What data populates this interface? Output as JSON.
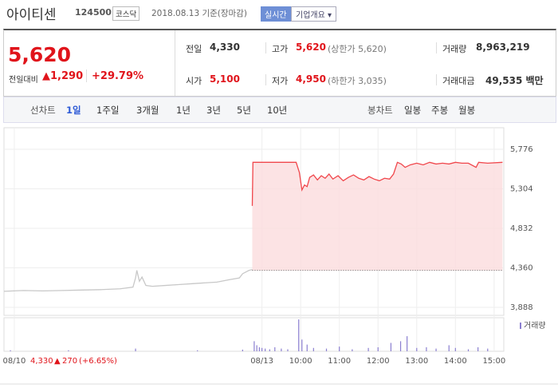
{
  "header": {
    "title": "아이티센",
    "code": "124500",
    "market": "코스닥",
    "date": "2018.08.13 기준(장마감)",
    "realtime": "실시간",
    "company": "기업개요"
  },
  "quote": {
    "price": "5,620",
    "change_label": "전일대비",
    "change": "1,290",
    "change_pct": "+29.79%",
    "cells": [
      {
        "label": "전일",
        "value": "4,330"
      },
      {
        "label": "고가",
        "value": "5,620",
        "note": "(상한가 5,620)"
      },
      {
        "label": "거래량",
        "value": "8,963,219"
      },
      {
        "label": "시가",
        "value": "5,100"
      },
      {
        "label": "저가",
        "value": "4,950",
        "note": "(하한가 3,035)"
      },
      {
        "label": "거래대금",
        "value": "49,535 백만"
      }
    ]
  },
  "tabs": {
    "line_label": "선차트",
    "line": [
      "1일",
      "1주일",
      "3개월",
      "1년",
      "3년",
      "5년",
      "10년"
    ],
    "candle_label": "봉차트",
    "candle": [
      "일봉",
      "주봉",
      "월봉"
    ]
  },
  "chart_data": {
    "type": "line",
    "xlim": [
      -400,
      375
    ],
    "ylim": [
      3793,
      6033
    ],
    "yticks": [
      {
        "value": 5776,
        "label": "5,776"
      },
      {
        "value": 5304,
        "label": "5,304"
      },
      {
        "value": 4832,
        "label": "4,832"
      },
      {
        "value": 4360,
        "label": "4,360"
      },
      {
        "value": 3888,
        "label": "3,888"
      }
    ],
    "xticks": [
      {
        "value": -384,
        "label": "08/10"
      },
      {
        "value": 0,
        "label": "08/13"
      },
      {
        "value": 60,
        "label": "10:00"
      },
      {
        "value": 120,
        "label": "11:00"
      },
      {
        "value": 180,
        "label": "12:00"
      },
      {
        "value": 240,
        "label": "13:00"
      },
      {
        "value": 300,
        "label": "14:00"
      },
      {
        "value": 360,
        "label": "15:00"
      }
    ],
    "grid": true,
    "reference_line": 4330,
    "series": [
      {
        "color": "#c8c8c8",
        "x": [
          -400,
          -370,
          -340,
          -310,
          -280,
          -250,
          -220,
          -200,
          -196,
          -194,
          -190,
          -186,
          -180,
          -170,
          -150,
          -130,
          -110,
          -90,
          -70,
          -50,
          -35,
          -30,
          -20,
          -15
        ],
        "values": [
          4080,
          4090,
          4085,
          4090,
          4095,
          4100,
          4110,
          4130,
          4240,
          4330,
          4200,
          4250,
          4150,
          4140,
          4150,
          4160,
          4170,
          4180,
          4190,
          4220,
          4240,
          4290,
          4330,
          4340
        ]
      },
      {
        "color": "#f0464b",
        "fill": "#fbdcdd",
        "x": [
          -15,
          -14,
          53,
          58,
          62,
          66,
          70,
          74,
          80,
          86,
          92,
          98,
          104,
          110,
          118,
          126,
          134,
          142,
          150,
          158,
          166,
          174,
          182,
          190,
          198,
          204,
          210,
          216,
          222,
          230,
          240,
          250,
          260,
          270,
          280,
          290,
          300,
          310,
          320,
          332,
          336,
          350,
          373
        ],
        "values": [
          5100,
          5620,
          5620,
          5500,
          5290,
          5350,
          5330,
          5440,
          5470,
          5410,
          5460,
          5430,
          5480,
          5420,
          5460,
          5400,
          5440,
          5470,
          5430,
          5410,
          5450,
          5420,
          5400,
          5430,
          5420,
          5480,
          5620,
          5600,
          5560,
          5590,
          5610,
          5590,
          5620,
          5600,
          5610,
          5600,
          5620,
          5610,
          5610,
          5560,
          5620,
          5610,
          5620
        ]
      }
    ],
    "volume": {
      "name": "거래량",
      "color": "#8b7fd0",
      "ylim": [
        0,
        100
      ],
      "x": [
        -390,
        -300,
        -196,
        -100,
        -30,
        -12,
        -8,
        -4,
        0,
        5,
        12,
        20,
        30,
        40,
        57,
        62,
        70,
        80,
        100,
        120,
        140,
        165,
        180,
        200,
        215,
        225,
        240,
        255,
        270,
        290,
        300,
        320,
        335,
        350
      ],
      "values": [
        3,
        3,
        8,
        3,
        5,
        30,
        18,
        12,
        10,
        8,
        6,
        12,
        8,
        6,
        95,
        35,
        20,
        10,
        8,
        14,
        6,
        10,
        12,
        25,
        30,
        45,
        10,
        12,
        8,
        18,
        10,
        6,
        12,
        8
      ]
    },
    "annotations": {
      "close": "4,330",
      "change": "270",
      "change_pct": "(+6.65%)"
    }
  }
}
